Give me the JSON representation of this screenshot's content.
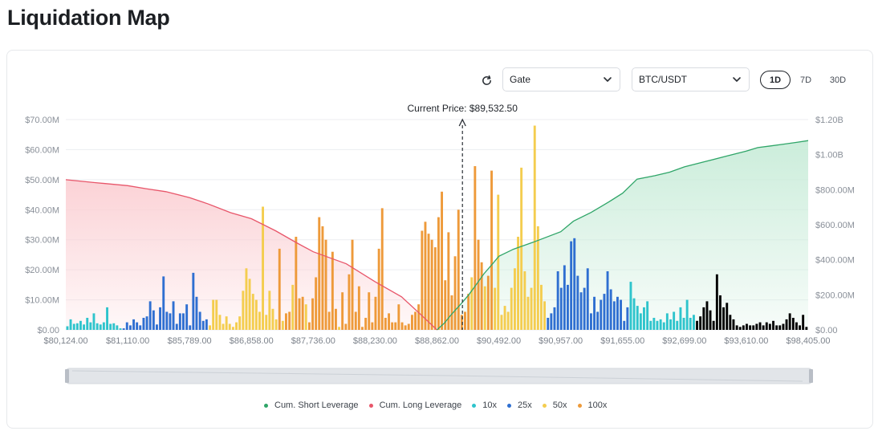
{
  "page": {
    "title": "Liquidation Map"
  },
  "controls": {
    "exchange": "Gate",
    "pair": "BTC/USDT",
    "ranges": [
      "1D",
      "7D",
      "30D"
    ],
    "active_range": "1D",
    "refresh_icon": "refresh-icon",
    "chevron_icon": "chevron-down-icon"
  },
  "colors": {
    "x10": "#2ec4cc",
    "x25": "#2f6fd1",
    "x50": "#f4cd4f",
    "x100": "#ee9a3a",
    "short_line": "#2fa568",
    "long_line": "#e8566a",
    "short_fill": "#c9ecd9",
    "long_fill": "#fbd0d4"
  },
  "chart_data": {
    "type": "bar",
    "title": "",
    "current_price_label": "Current Price: $89,532.50",
    "current_price_x": 89532.5,
    "xlabel": "",
    "ylabel": "",
    "x_tick_labels": [
      "$80,124.00",
      "$81,110.00",
      "$85,789.00",
      "$86,858.00",
      "$87,736.00",
      "$88,230.00",
      "$88,862.00",
      "$90,492.00",
      "$90,957.00",
      "$91,655.00",
      "$92,699.00",
      "$93,610.00",
      "$98,405.00"
    ],
    "y_left_ticks": [
      "$0.00",
      "$10.00M",
      "$20.00M",
      "$30.00M",
      "$40.00M",
      "$50.00M",
      "$60.00M",
      "$70.00M"
    ],
    "y_right_ticks": [
      "$0.00",
      "$200.00M",
      "$400.00M",
      "$600.00M",
      "$800.00M",
      "$1.00B",
      "$1.20B"
    ],
    "ylim_left": [
      0,
      70
    ],
    "ylim_right": [
      0,
      1200
    ],
    "y_units": "$M",
    "grid": true,
    "legend_position": "bottom",
    "bars_in_price_order": {
      "leverage": [
        "10x",
        "10x",
        "10x",
        "10x",
        "10x",
        "10x",
        "10x",
        "10x",
        "10x",
        "10x",
        "10x",
        "10x",
        "10x",
        "10x",
        "10x",
        "10x",
        "10x",
        "25x",
        "25x",
        "25x",
        "25x",
        "25x",
        "25x",
        "25x",
        "25x",
        "25x",
        "25x",
        "25x",
        "25x",
        "25x",
        "25x",
        "25x",
        "25x",
        "25x",
        "25x",
        "25x",
        "25x",
        "25x",
        "25x",
        "25x",
        "25x",
        "25x",
        "25x",
        "50x",
        "50x",
        "50x",
        "50x",
        "50x",
        "50x",
        "50x",
        "50x",
        "50x",
        "50x",
        "50x",
        "50x",
        "50x",
        "50x",
        "50x",
        "50x",
        "50x",
        "50x",
        "50x",
        "50x",
        "50x",
        "100x",
        "50x",
        "100x",
        "100x",
        "50x",
        "100x",
        "100x",
        "100x",
        "50x",
        "100x",
        "100x",
        "100x",
        "100x",
        "100x",
        "100x",
        "100x",
        "100x",
        "100x",
        "50x",
        "100x",
        "100x",
        "100x",
        "100x",
        "100x",
        "100x",
        "100x",
        "100x",
        "100x",
        "100x",
        "100x",
        "100x",
        "100x",
        "100x",
        "100x",
        "100x",
        "100x",
        "100x",
        "100x",
        "100x",
        "100x",
        "100x",
        "100x",
        "100x",
        "100x",
        "100x",
        "100x",
        "100x",
        "100x",
        "100x",
        "100x",
        "100x",
        "100x",
        "100x",
        "100x",
        "100x",
        "100x",
        "100x",
        "100x",
        "50x",
        "100x",
        "100x",
        "100x",
        "50x",
        "100x",
        "100x",
        "50x",
        "50x",
        "50x",
        "50x",
        "50x",
        "50x",
        "50x",
        "50x",
        "50x",
        "50x",
        "50x",
        "50x",
        "50x",
        "50x",
        "50x",
        "50x",
        "25x",
        "25x",
        "25x",
        "25x",
        "25x",
        "25x",
        "25x",
        "25x",
        "25x",
        "25x",
        "25x",
        "25x",
        "25x",
        "25x",
        "25x",
        "25x",
        "25x",
        "25x",
        "25x",
        "25x",
        "25x",
        "25x",
        "25x",
        "25x",
        "25x",
        "10x",
        "10x",
        "10x",
        "10x",
        "10x",
        "10x",
        "10x",
        "10x",
        "10x",
        "10x",
        "10x",
        "10x",
        "10x",
        "10x",
        "10x",
        "10x",
        "10x",
        "10x",
        "10x",
        "10x"
      ],
      "values_musd": [
        1.2,
        3.5,
        2.0,
        2.2,
        3.0,
        1.8,
        4.0,
        2.5,
        5.5,
        2.2,
        1.8,
        2.5,
        7.5,
        2.0,
        2.2,
        1.5,
        0.5,
        0.5,
        2.5,
        1.5,
        3.5,
        2.5,
        1.5,
        4.0,
        4.5,
        9.5,
        6.5,
        1.8,
        7.5,
        17.8,
        6.0,
        5.5,
        9.5,
        2.0,
        5.5,
        5.5,
        8.5,
        1.5,
        19.0,
        11.0,
        6.0,
        3.0,
        3.5,
        1.5,
        10.0,
        10.0,
        5.0,
        2.0,
        4.5,
        2.0,
        1.0,
        2.5,
        4.5,
        13.0,
        20.5,
        17.0,
        12.0,
        10.0,
        6.0,
        41.0,
        5.0,
        13.0,
        7.0,
        3.5,
        27.0,
        3.0,
        5.5,
        6.0,
        15.0,
        31.0,
        10.5,
        11.0,
        8.5,
        2.5,
        10.5,
        17.5,
        37.5,
        34.5,
        30.0,
        6.0,
        26.0,
        7.0,
        1.0,
        12.5,
        2.0,
        18.5,
        30.0,
        6.0,
        14.5,
        1.0,
        4.0,
        12.5,
        2.5,
        11.0,
        27.0,
        40.5,
        4.0,
        5.5,
        2.5,
        2.5,
        8.5,
        2.5,
        1.5,
        2.0,
        5.0,
        6.0,
        8.5,
        33.0,
        36.0,
        32.0,
        30.0,
        27.5,
        37.5,
        46.0,
        16.5,
        32.5,
        11.5,
        24.5,
        40.0,
        5.0,
        6.0,
        12.0,
        17.5,
        54.5,
        30.0,
        22.5,
        14.5,
        18.0,
        53.0,
        14.0,
        45.0,
        5.0,
        8.0,
        6.0,
        14.0,
        20.5,
        31.0,
        54.0,
        19.5,
        11.0,
        14.0,
        68.0,
        34.5,
        15.0,
        9.5,
        4.0,
        5.5,
        7.5,
        19.5,
        14.0,
        21.5,
        15.0,
        29.5,
        30.5,
        18.0,
        12.5,
        14.0,
        20.5,
        5.5,
        11.0,
        6.0,
        10.0,
        12.0,
        19.5,
        13.5,
        9.5,
        11.0,
        10.0,
        3.0,
        7.5,
        16.0,
        10.5,
        8.0,
        5.5,
        7.5,
        9.5,
        3.0,
        4.0,
        3.0,
        3.5,
        2.5,
        5.5,
        3.5,
        6.0,
        3.0,
        7.5,
        4.0,
        10.0,
        4.0,
        5.0,
        3.0,
        4.5,
        7.5,
        9.5,
        6.5,
        3.0,
        18.5,
        11.5,
        7.5,
        9.0,
        5.0,
        3.5,
        1.5,
        1.0,
        1.5,
        2.0,
        1.5,
        1.5,
        2.0,
        2.5,
        1.5,
        2.5,
        2.0,
        3.0,
        1.5,
        1.5,
        2.0,
        3.5,
        5.5,
        4.0,
        2.5,
        1.5,
        5.0,
        1.0
      ]
    },
    "series": [
      {
        "name": "Cum. Short Leverage",
        "type": "line",
        "axis": "right",
        "x": [
          88862,
          89060,
          89250,
          89500,
          89700,
          89900,
          90100,
          90300,
          90492,
          90600,
          90750,
          90957,
          91100,
          91300,
          91500,
          91655,
          91900,
          92200,
          92450,
          92699,
          93000,
          93300,
          93610,
          94500,
          95500,
          96500,
          97500,
          98405
        ],
        "values_musd": [
          0,
          40,
          90,
          150,
          200,
          260,
          320,
          370,
          420,
          460,
          500,
          560,
          620,
          670,
          730,
          780,
          860,
          880,
          900,
          930,
          960,
          990,
          1020,
          1040,
          1050,
          1060,
          1070,
          1080
        ]
      },
      {
        "name": "Cum. Long Leverage",
        "type": "line",
        "axis": "left",
        "x": [
          80124,
          80600,
          81110,
          82500,
          84000,
          85789,
          86100,
          86500,
          86858,
          87200,
          87500,
          87736,
          88000,
          88230,
          88500,
          88700,
          88862
        ],
        "values_musd": [
          50,
          49,
          48,
          47,
          46,
          44,
          42,
          39,
          37,
          33,
          29,
          26,
          22,
          16,
          11,
          5,
          0
        ]
      },
      {
        "name": "10x",
        "type": "bar"
      },
      {
        "name": "25x",
        "type": "bar"
      },
      {
        "name": "50x",
        "type": "bar"
      },
      {
        "name": "100x",
        "type": "bar"
      }
    ]
  }
}
